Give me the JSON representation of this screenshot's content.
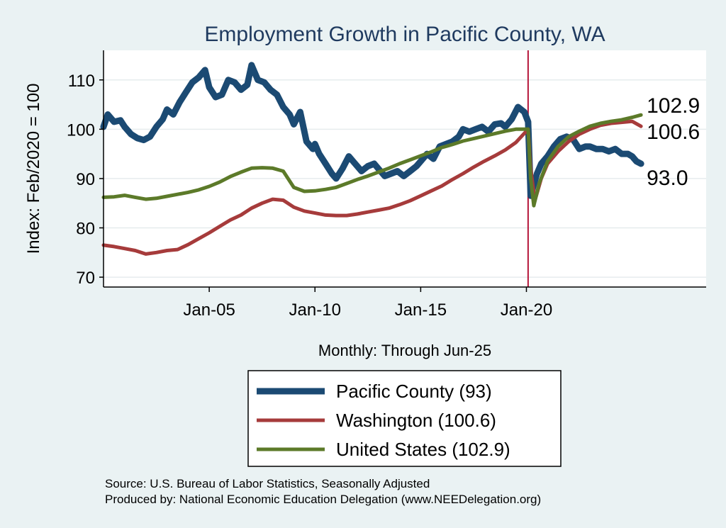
{
  "chart_data": {
    "type": "line",
    "title": "Employment Growth in Pacific  County, WA",
    "ylabel": "Index: Feb/2020 = 100",
    "xlabel": "Monthly: Through Jun-25",
    "ylim": [
      68,
      116
    ],
    "xlim": [
      2000.0,
      2028.5
    ],
    "yticks": [
      70,
      80,
      90,
      100,
      110
    ],
    "xticks": [
      {
        "label": "Jan-05",
        "value": 2005.0
      },
      {
        "label": "Jan-10",
        "value": 2010.0
      },
      {
        "label": "Jan-15",
        "value": 2015.0
      },
      {
        "label": "Jan-20",
        "value": 2020.0
      }
    ],
    "vline": {
      "x": 2020.08,
      "color": "#b5163a"
    },
    "series": [
      {
        "name": "Pacific County",
        "legend": "Pacific  County (93)",
        "color": "#1b4a73",
        "width": 9,
        "x": [
          2000.0,
          2000.2,
          2000.5,
          2000.8,
          2001.0,
          2001.3,
          2001.6,
          2001.9,
          2002.2,
          2002.5,
          2002.8,
          2003.0,
          2003.3,
          2003.6,
          2003.9,
          2004.2,
          2004.5,
          2004.8,
          2005.0,
          2005.3,
          2005.6,
          2005.9,
          2006.2,
          2006.5,
          2006.8,
          2007.0,
          2007.3,
          2007.6,
          2007.9,
          2008.2,
          2008.5,
          2008.8,
          2009.0,
          2009.3,
          2009.6,
          2009.9,
          2010.0,
          2010.2,
          2010.5,
          2010.8,
          2011.0,
          2011.3,
          2011.6,
          2011.9,
          2012.2,
          2012.5,
          2012.8,
          2013.0,
          2013.3,
          2013.6,
          2013.9,
          2014.2,
          2014.5,
          2014.8,
          2015.0,
          2015.3,
          2015.6,
          2015.9,
          2016.2,
          2016.5,
          2016.8,
          2017.0,
          2017.3,
          2017.6,
          2017.9,
          2018.2,
          2018.5,
          2018.8,
          2019.0,
          2019.3,
          2019.6,
          2019.9,
          2020.08,
          2020.2,
          2020.3,
          2020.5,
          2020.7,
          2021.0,
          2021.3,
          2021.6,
          2021.9,
          2022.2,
          2022.5,
          2022.8,
          2023.0,
          2023.3,
          2023.6,
          2023.9,
          2024.2,
          2024.5,
          2024.8,
          2025.0,
          2025.2,
          2025.42
        ],
        "y": [
          100.5,
          103.0,
          101.5,
          101.8,
          100.5,
          99.0,
          98.2,
          97.8,
          98.5,
          100.5,
          102.0,
          104.0,
          103.0,
          105.5,
          107.5,
          109.5,
          110.5,
          112.0,
          108.5,
          106.5,
          107.0,
          110.0,
          109.5,
          108.0,
          109.0,
          113.0,
          110.0,
          109.5,
          108.0,
          107.0,
          104.5,
          103.0,
          101.0,
          103.5,
          97.5,
          96.0,
          97.0,
          95.0,
          93.0,
          91.0,
          90.0,
          92.0,
          94.5,
          93.0,
          91.5,
          92.5,
          93.0,
          92.0,
          90.5,
          91.0,
          91.5,
          90.5,
          91.5,
          92.5,
          93.5,
          95.0,
          94.0,
          96.5,
          97.0,
          97.5,
          98.5,
          100.0,
          99.5,
          100.0,
          100.5,
          99.5,
          101.0,
          101.2,
          100.5,
          102.0,
          104.5,
          103.5,
          101.5,
          86.5,
          88.0,
          91.0,
          93.0,
          94.5,
          96.5,
          98.0,
          98.5,
          98.0,
          96.0,
          96.5,
          96.5,
          96.0,
          96.0,
          95.5,
          96.0,
          95.0,
          95.0,
          94.5,
          93.5,
          93.0
        ]
      },
      {
        "name": "Washington",
        "legend": "Washington (100.6)",
        "color": "#a63b3b",
        "width": 5,
        "x": [
          2000.0,
          2000.5,
          2001.0,
          2001.5,
          2002.0,
          2002.5,
          2003.0,
          2003.5,
          2004.0,
          2004.5,
          2005.0,
          2005.5,
          2006.0,
          2006.5,
          2007.0,
          2007.5,
          2008.0,
          2008.5,
          2009.0,
          2009.5,
          2010.0,
          2010.5,
          2011.0,
          2011.5,
          2012.0,
          2012.5,
          2013.0,
          2013.5,
          2014.0,
          2014.5,
          2015.0,
          2015.5,
          2016.0,
          2016.5,
          2017.0,
          2017.5,
          2018.0,
          2018.5,
          2019.0,
          2019.5,
          2020.08,
          2020.2,
          2020.4,
          2020.7,
          2021.0,
          2021.5,
          2022.0,
          2022.5,
          2023.0,
          2023.5,
          2024.0,
          2024.5,
          2025.0,
          2025.42
        ],
        "y": [
          76.5,
          76.2,
          75.8,
          75.4,
          74.7,
          75.0,
          75.4,
          75.6,
          76.6,
          77.8,
          79.0,
          80.3,
          81.6,
          82.6,
          84.0,
          85.0,
          85.8,
          85.6,
          84.2,
          83.4,
          83.0,
          82.6,
          82.5,
          82.5,
          82.8,
          83.2,
          83.6,
          84.0,
          84.7,
          85.5,
          86.5,
          87.5,
          88.5,
          89.8,
          91.0,
          92.3,
          93.5,
          94.6,
          95.8,
          97.3,
          100.0,
          92.0,
          85.5,
          90.0,
          93.0,
          95.5,
          97.5,
          99.0,
          100.0,
          100.8,
          101.2,
          101.4,
          101.6,
          100.6
        ]
      },
      {
        "name": "United States",
        "legend": "United States (102.9)",
        "color": "#5c7a29",
        "width": 5,
        "x": [
          2000.0,
          2000.5,
          2001.0,
          2001.5,
          2002.0,
          2002.5,
          2003.0,
          2003.5,
          2004.0,
          2004.5,
          2005.0,
          2005.5,
          2006.0,
          2006.5,
          2007.0,
          2007.5,
          2008.0,
          2008.5,
          2009.0,
          2009.5,
          2010.0,
          2010.5,
          2011.0,
          2011.5,
          2012.0,
          2012.5,
          2013.0,
          2013.5,
          2014.0,
          2014.5,
          2015.0,
          2015.5,
          2016.0,
          2016.5,
          2017.0,
          2017.5,
          2018.0,
          2018.5,
          2019.0,
          2019.5,
          2020.08,
          2020.2,
          2020.35,
          2020.6,
          2021.0,
          2021.5,
          2022.0,
          2022.5,
          2023.0,
          2023.5,
          2024.0,
          2024.5,
          2025.0,
          2025.42
        ],
        "y": [
          86.2,
          86.3,
          86.6,
          86.2,
          85.8,
          86.0,
          86.4,
          86.8,
          87.2,
          87.7,
          88.4,
          89.3,
          90.4,
          91.3,
          92.1,
          92.2,
          92.1,
          91.5,
          88.2,
          87.4,
          87.5,
          87.8,
          88.2,
          89.0,
          89.8,
          90.5,
          91.3,
          92.1,
          93.0,
          93.8,
          94.6,
          95.4,
          96.3,
          96.9,
          97.6,
          98.1,
          98.6,
          99.1,
          99.6,
          100.0,
          100.0,
          90.0,
          84.5,
          89.0,
          93.5,
          96.5,
          98.5,
          99.6,
          100.6,
          101.2,
          101.6,
          101.9,
          102.4,
          102.9
        ]
      }
    ],
    "end_labels": [
      {
        "series": "United States",
        "text": "102.9"
      },
      {
        "series": "Washington",
        "text": "100.6"
      },
      {
        "series": "Pacific County",
        "text": "93.0"
      }
    ],
    "legend_position": "bottom-center"
  },
  "notes": {
    "source": "Source: U.S. Bureau of Labor Statistics, Seasonally Adjusted",
    "produced_by": "Produced by: National Economic Education Delegation (www.NEEDelegation.org)"
  },
  "colors": {
    "background": "#eaf2f3",
    "plot_background": "#ffffff",
    "title": "#1f3a5f"
  }
}
